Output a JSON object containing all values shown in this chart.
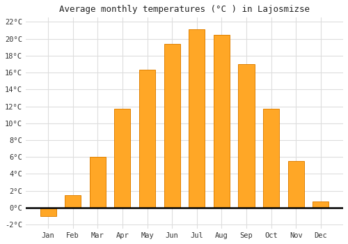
{
  "months": [
    "Jan",
    "Feb",
    "Mar",
    "Apr",
    "May",
    "Jun",
    "Jul",
    "Aug",
    "Sep",
    "Oct",
    "Nov",
    "Dec"
  ],
  "values": [
    -1.0,
    1.5,
    6.0,
    11.7,
    16.3,
    19.4,
    21.1,
    20.5,
    17.0,
    11.7,
    5.5,
    0.7
  ],
  "bar_color": "#FFA726",
  "bar_edge_color": "#E08000",
  "title": "Average monthly temperatures (°C ) in Lajosmizse",
  "ylim": [
    -2.5,
    22.5
  ],
  "yticks": [
    -2,
    0,
    2,
    4,
    6,
    8,
    10,
    12,
    14,
    16,
    18,
    20,
    22
  ],
  "background_color": "#ffffff",
  "plot_bg_color": "#ffffff",
  "grid_color": "#dddddd",
  "title_fontsize": 9,
  "tick_fontsize": 7.5
}
